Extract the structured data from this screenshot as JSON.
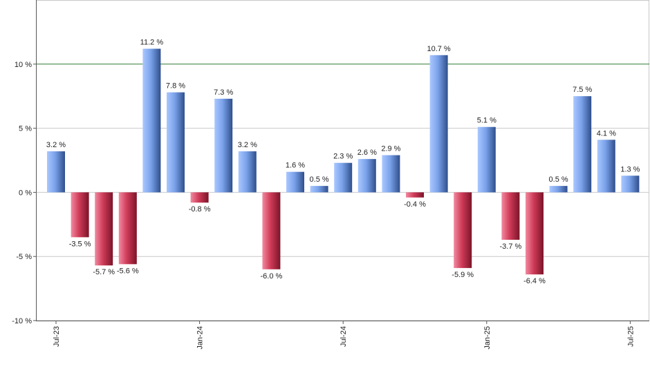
{
  "chart_data": {
    "type": "bar",
    "title": "",
    "xlabel": "",
    "ylabel": "",
    "ylim": [
      -10,
      15
    ],
    "grid": true,
    "reference_line": {
      "value": 10,
      "color": "#2e7d32"
    },
    "y_ticks": [
      {
        "value": -10,
        "label": "-10 %"
      },
      {
        "value": -5,
        "label": "-5 %"
      },
      {
        "value": 0,
        "label": "0 %"
      },
      {
        "value": 5,
        "label": "5 %"
      },
      {
        "value": 10,
        "label": "10 %"
      }
    ],
    "x_ticks": [
      {
        "index": 0,
        "label": "Jul-23"
      },
      {
        "index": 6,
        "label": "Jan-24"
      },
      {
        "index": 12,
        "label": "Jul-24"
      },
      {
        "index": 18,
        "label": "Jan-25"
      },
      {
        "index": 24,
        "label": "Jul-25"
      }
    ],
    "values": [
      3.2,
      -3.5,
      -5.7,
      -5.6,
      11.2,
      7.8,
      -0.8,
      7.3,
      3.2,
      -6.0,
      1.6,
      0.5,
      2.3,
      2.6,
      2.9,
      -0.4,
      10.7,
      -5.9,
      5.1,
      -3.7,
      -6.4,
      0.5,
      7.5,
      4.1,
      1.3
    ],
    "labels": [
      "3.2 %",
      "-3.5 %",
      "-5.7 %",
      "-5.6 %",
      "11.2 %",
      "7.8 %",
      "-0.8 %",
      "7.3 %",
      "3.2 %",
      "-6.0 %",
      "1.6 %",
      "0.5 %",
      "2.3 %",
      "2.6 %",
      "2.9 %",
      "-0.4 %",
      "10.7 %",
      "-5.9 %",
      "5.1 %",
      "-3.7 %",
      "-6.4 %",
      "0.5 %",
      "7.5 %",
      "4.1 %",
      "1.3 %"
    ],
    "colors": {
      "positive": "#6f97e0",
      "negative": "#c8334f"
    }
  }
}
